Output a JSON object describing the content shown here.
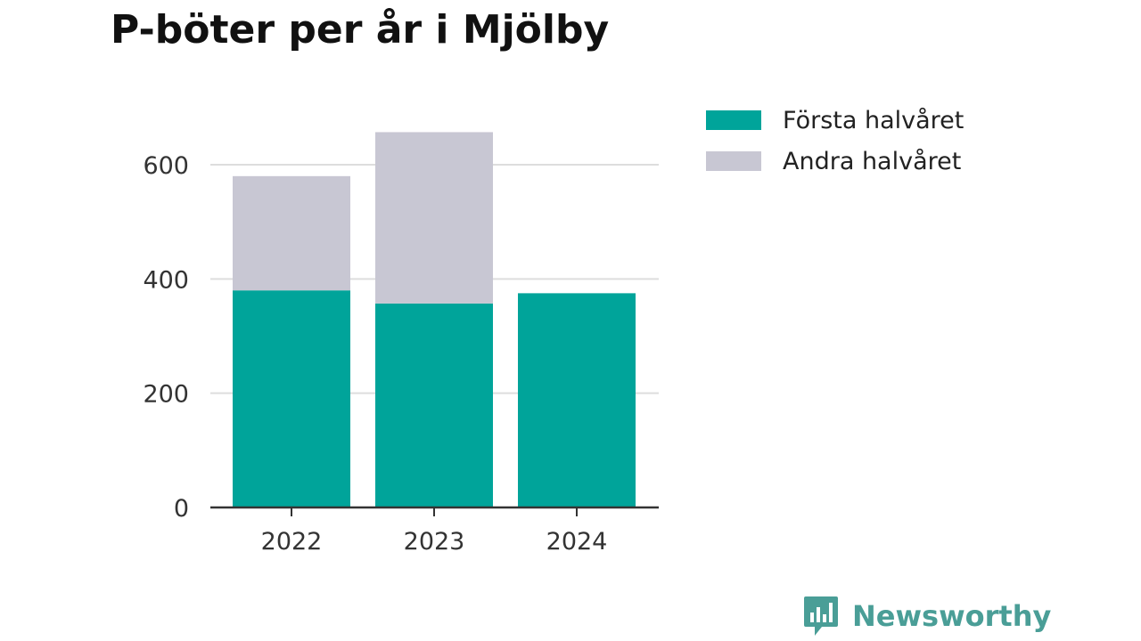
{
  "header": {
    "title": "P-böter per år i Mjölby"
  },
  "brand": {
    "name": "Newsworthy",
    "logo_icon": "bar-chart-speech-bubble-icon",
    "color": "#4a9e97"
  },
  "chart_data": {
    "type": "bar",
    "stacked": true,
    "categories": [
      "2022",
      "2023",
      "2024"
    ],
    "series": [
      {
        "name": "Första halvåret",
        "color": "#00a49a",
        "values": [
          380,
          357,
          375
        ]
      },
      {
        "name": "Andra halvåret",
        "color": "#c8c7d3",
        "values": [
          200,
          300,
          0
        ]
      }
    ],
    "ylim": [
      0,
      680
    ],
    "yticks": [
      0,
      200,
      400,
      600
    ],
    "grid": true,
    "legend_position": "top-right",
    "xlabel": "",
    "ylabel": ""
  }
}
